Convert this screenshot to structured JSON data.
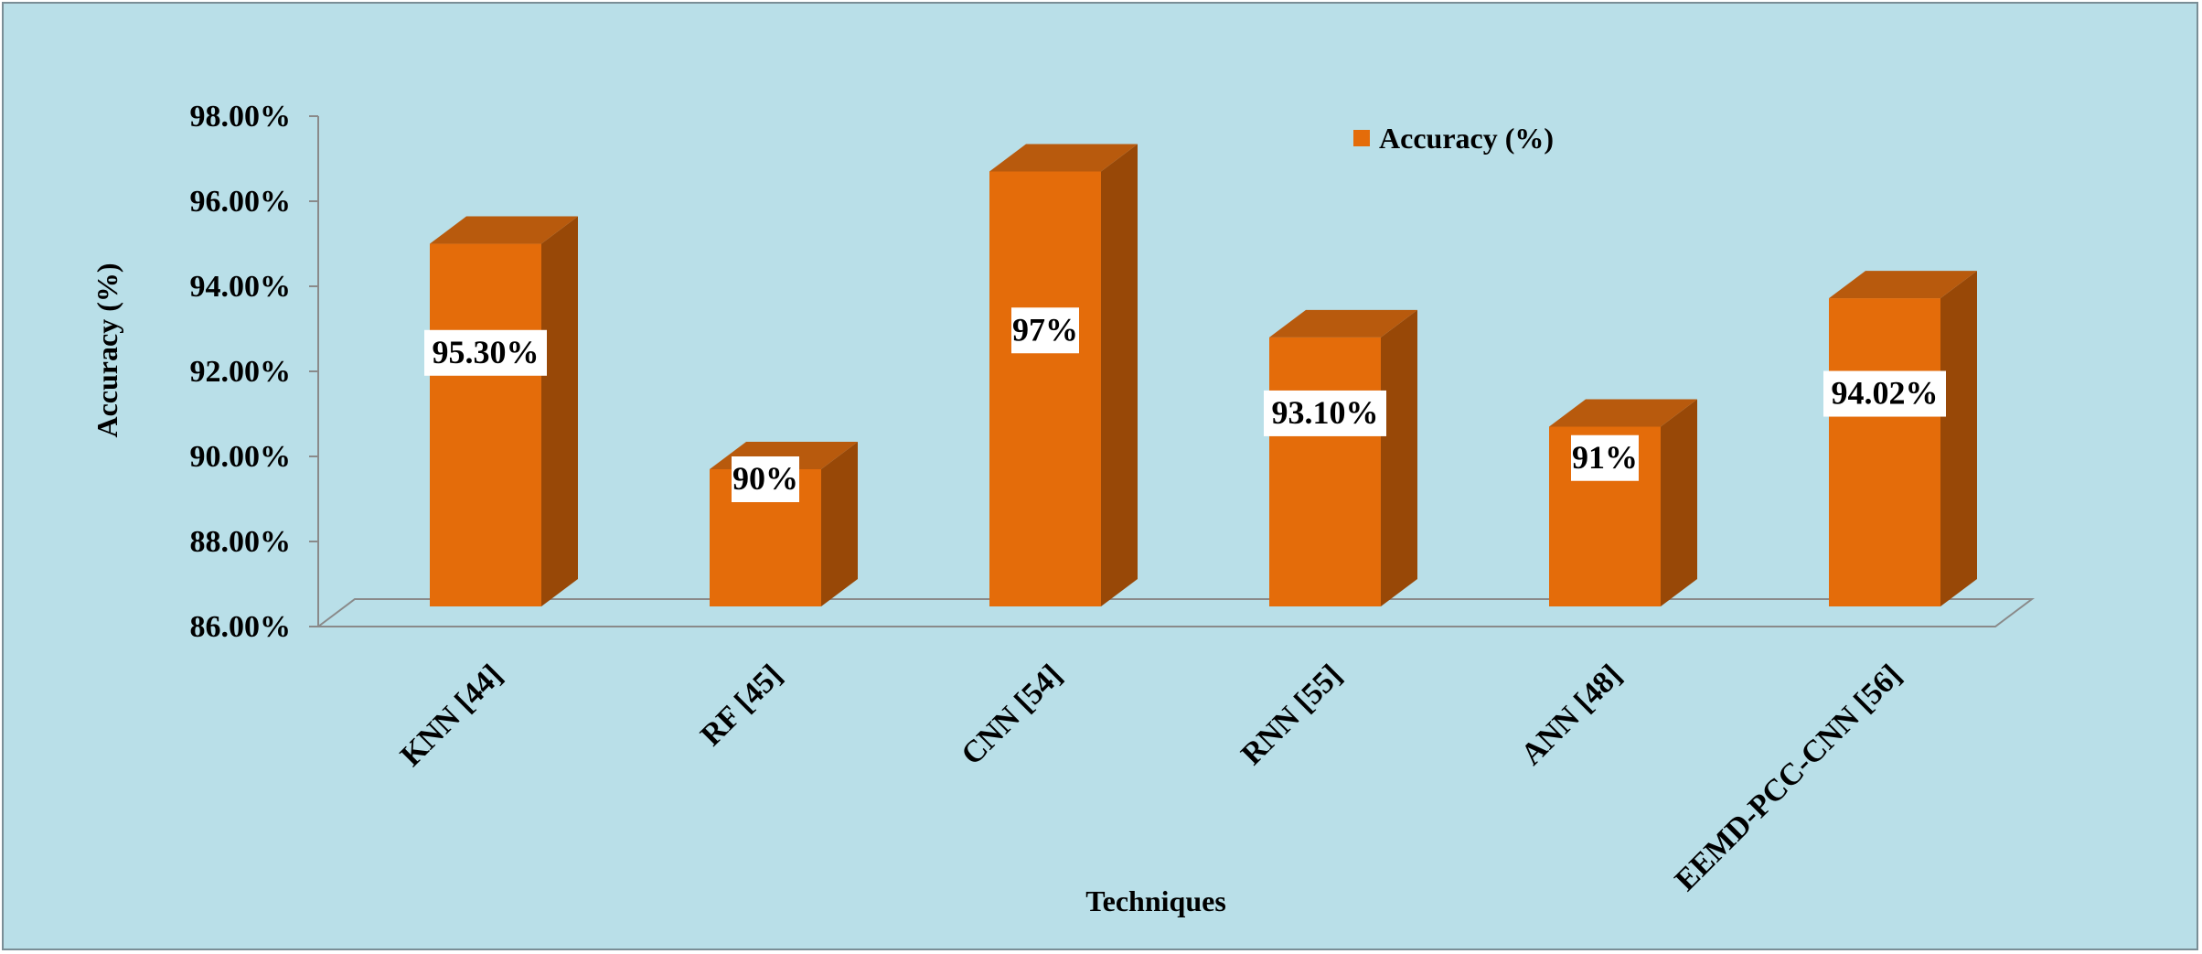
{
  "chart_data": {
    "type": "bar",
    "title": "",
    "xlabel": "Techniques",
    "ylabel": "Accuracy (%)",
    "categories": [
      "KNN [44]",
      "RF [45]",
      "CNN [54]",
      "RNN [55]",
      "ANN [48]",
      "EEMD-PCC-CNN [56]"
    ],
    "series": [
      {
        "name": "Accuracy (%)",
        "values": [
          95.3,
          90,
          97,
          93.1,
          91,
          94.02
        ],
        "data_labels": [
          "95.30%",
          "90%",
          "97%",
          "93.10%",
          "91%",
          "94.02%"
        ]
      }
    ],
    "ylim": [
      86,
      98
    ],
    "yticks": [
      86,
      88,
      90,
      92,
      94,
      96,
      98
    ],
    "ytick_labels": [
      "86.00%",
      "88.00%",
      "90.00%",
      "92.00%",
      "94.00%",
      "96.00%",
      "98.00%"
    ],
    "grid": false,
    "legend": "top-center",
    "style": "3d-column",
    "colors": {
      "bar_front": "#e46c0a",
      "bar_side": "#984807",
      "bar_top": "#b85a0d",
      "background": "#b9dfe8"
    }
  }
}
